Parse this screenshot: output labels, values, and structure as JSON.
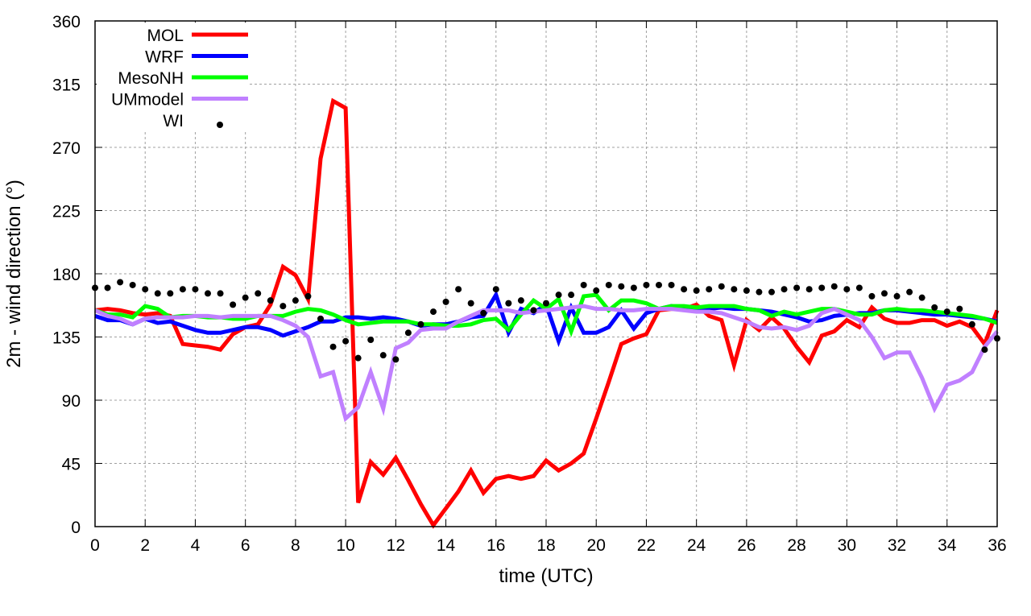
{
  "chart_data": {
    "type": "line",
    "title": "",
    "xlabel": "time (UTC)",
    "ylabel": "2m - wind direction (°)",
    "xlim": [
      0,
      36
    ],
    "ylim": [
      0,
      360
    ],
    "xticks": [
      "0",
      "2",
      "4",
      "6",
      "8",
      "10",
      "12",
      "14",
      "16",
      "18",
      "20",
      "22",
      "24",
      "26",
      "28",
      "30",
      "32",
      "34",
      "36"
    ],
    "yticks": [
      "0",
      "45",
      "90",
      "135",
      "180",
      "225",
      "270",
      "315",
      "360"
    ],
    "grid": true,
    "legend_position": "top-left",
    "x_step": 0.5,
    "series": [
      {
        "name": "MOL",
        "style": "line",
        "color": "#ff0000",
        "values": [
          154,
          155,
          154,
          152,
          151,
          152,
          150,
          130,
          129,
          128,
          126,
          137,
          142,
          144,
          158,
          185,
          179,
          162,
          262,
          303,
          298,
          17,
          46,
          37,
          49,
          33,
          16,
          1,
          13,
          25,
          40,
          24,
          34,
          36,
          34,
          36,
          47,
          40,
          45,
          52,
          77,
          103,
          130,
          134,
          137,
          154,
          155,
          155,
          158,
          150,
          147,
          115,
          147,
          140,
          149,
          141,
          128,
          117,
          136,
          139,
          147,
          142,
          156,
          148,
          145,
          145,
          147,
          147,
          143,
          146,
          142,
          130,
          154
        ]
      },
      {
        "name": "WRF",
        "style": "line",
        "color": "#0000ff",
        "values": [
          150,
          147,
          147,
          144,
          148,
          145,
          146,
          143,
          140,
          138,
          138,
          140,
          142,
          142,
          140,
          136,
          139,
          142,
          146,
          146,
          149,
          149,
          148,
          149,
          148,
          146,
          143,
          144,
          144,
          146,
          149,
          150,
          165,
          138,
          155,
          152,
          158,
          132,
          156,
          138,
          138,
          142,
          154,
          141,
          152,
          155,
          157,
          155,
          154,
          155,
          156,
          155,
          155,
          154,
          153,
          151,
          149,
          146,
          147,
          150,
          151,
          152,
          152,
          154,
          154,
          153,
          152,
          151,
          151,
          150,
          149,
          148,
          146
        ]
      },
      {
        "name": "MesoNH",
        "style": "line",
        "color": "#00ff00",
        "values": [
          154,
          151,
          151,
          149,
          157,
          155,
          149,
          150,
          150,
          149,
          149,
          148,
          148,
          150,
          150,
          150,
          153,
          155,
          154,
          151,
          147,
          144,
          145,
          146,
          146,
          146,
          144,
          144,
          143,
          143,
          144,
          147,
          148,
          140,
          151,
          161,
          155,
          162,
          139,
          164,
          165,
          154,
          161,
          161,
          159,
          155,
          157,
          157,
          156,
          157,
          157,
          157,
          155,
          154,
          150,
          153,
          151,
          153,
          155,
          155,
          153,
          151,
          151,
          154,
          155,
          154,
          154,
          153,
          152,
          151,
          150,
          148,
          145
        ]
      },
      {
        "name": "UMmodel",
        "style": "line",
        "color": "#c080ff",
        "values": [
          154,
          150,
          148,
          144,
          148,
          149,
          149,
          149,
          150,
          150,
          149,
          150,
          150,
          150,
          150,
          147,
          143,
          135,
          107,
          110,
          77,
          85,
          110,
          84,
          127,
          131,
          140,
          141,
          141,
          146,
          150,
          154,
          154,
          154,
          152,
          153,
          154,
          155,
          156,
          157,
          155,
          155,
          154,
          154,
          155,
          155,
          155,
          154,
          153,
          153,
          152,
          149,
          146,
          142,
          141,
          142,
          140,
          143,
          152,
          155,
          151,
          147,
          135,
          120,
          124,
          124,
          106,
          84,
          101,
          104,
          110,
          128,
          139
        ]
      },
      {
        "name": "WI",
        "style": "points",
        "color": "#000000",
        "values": [
          170,
          170,
          174,
          172,
          169,
          166,
          166,
          169,
          169,
          166,
          166,
          158,
          163,
          166,
          161,
          157,
          161,
          164,
          148,
          128,
          132,
          120,
          133,
          122,
          119,
          138,
          144,
          153,
          160,
          169,
          159,
          152,
          169,
          159,
          161,
          154,
          159,
          165,
          165,
          172,
          168,
          172,
          171,
          170,
          172,
          172,
          172,
          169,
          168,
          169,
          171,
          169,
          168,
          167,
          167,
          169,
          170,
          169,
          170,
          171,
          169,
          170,
          164,
          166,
          164,
          167,
          163,
          156,
          153,
          155,
          144,
          126,
          134
        ]
      }
    ]
  }
}
